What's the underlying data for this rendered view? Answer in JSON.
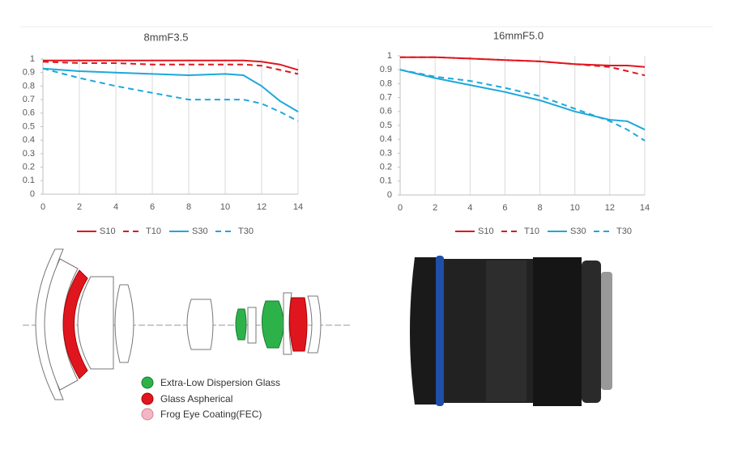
{
  "chart_data": [
    {
      "type": "line",
      "title": "8mmF3.5",
      "x": [
        0,
        2,
        4,
        6,
        8,
        10,
        11,
        12,
        13,
        14
      ],
      "series": [
        {
          "name": "S10",
          "color": "#e0161e",
          "style": "solid",
          "values": [
            0.99,
            0.99,
            0.99,
            0.99,
            0.99,
            0.99,
            0.99,
            0.98,
            0.96,
            0.92
          ]
        },
        {
          "name": "T10",
          "color": "#e0161e",
          "style": "dashed",
          "values": [
            0.98,
            0.97,
            0.97,
            0.96,
            0.96,
            0.96,
            0.96,
            0.95,
            0.92,
            0.89
          ]
        },
        {
          "name": "S30",
          "color": "#1ea7dc",
          "style": "solid",
          "values": [
            0.93,
            0.91,
            0.9,
            0.89,
            0.88,
            0.89,
            0.88,
            0.8,
            0.69,
            0.61
          ]
        },
        {
          "name": "T30",
          "color": "#1ea7dc",
          "style": "dashed",
          "values": [
            0.93,
            0.86,
            0.8,
            0.75,
            0.7,
            0.7,
            0.7,
            0.67,
            0.61,
            0.54
          ]
        }
      ],
      "xlim": [
        0,
        14
      ],
      "xticks": [
        0,
        2,
        4,
        6,
        8,
        10,
        12,
        14
      ],
      "ylim": [
        0,
        1
      ],
      "yticks": [
        0,
        0.1,
        0.2,
        0.3,
        0.4,
        0.5,
        0.6,
        0.7,
        0.8,
        0.9,
        1
      ],
      "grid": "x",
      "legend": "bottom"
    },
    {
      "type": "line",
      "title": "16mmF5.0",
      "x": [
        0,
        2,
        4,
        6,
        8,
        10,
        12,
        13,
        14
      ],
      "series": [
        {
          "name": "S10",
          "color": "#e0161e",
          "style": "solid",
          "values": [
            0.99,
            0.99,
            0.98,
            0.97,
            0.96,
            0.94,
            0.93,
            0.93,
            0.92
          ]
        },
        {
          "name": "T10",
          "color": "#e0161e",
          "style": "dashed",
          "values": [
            0.99,
            0.99,
            0.98,
            0.97,
            0.96,
            0.94,
            0.92,
            0.89,
            0.86
          ]
        },
        {
          "name": "S30",
          "color": "#1ea7dc",
          "style": "solid",
          "values": [
            0.9,
            0.84,
            0.79,
            0.74,
            0.68,
            0.6,
            0.54,
            0.53,
            0.47
          ]
        },
        {
          "name": "T30",
          "color": "#1ea7dc",
          "style": "dashed",
          "values": [
            0.9,
            0.85,
            0.82,
            0.77,
            0.71,
            0.62,
            0.53,
            0.47,
            0.39
          ]
        }
      ],
      "xlim": [
        0,
        14
      ],
      "xticks": [
        0,
        2,
        4,
        6,
        8,
        10,
        12,
        14
      ],
      "ylim": [
        0,
        1
      ],
      "yticks": [
        0,
        0.1,
        0.2,
        0.3,
        0.4,
        0.5,
        0.6,
        0.7,
        0.8,
        0.9,
        1
      ],
      "grid": "x",
      "legend": "bottom"
    }
  ],
  "diagram": {
    "legend": [
      "Extra-Low Dispersion Glass",
      "Glass Aspherical",
      "Frog Eye Coating(FEC)"
    ]
  }
}
